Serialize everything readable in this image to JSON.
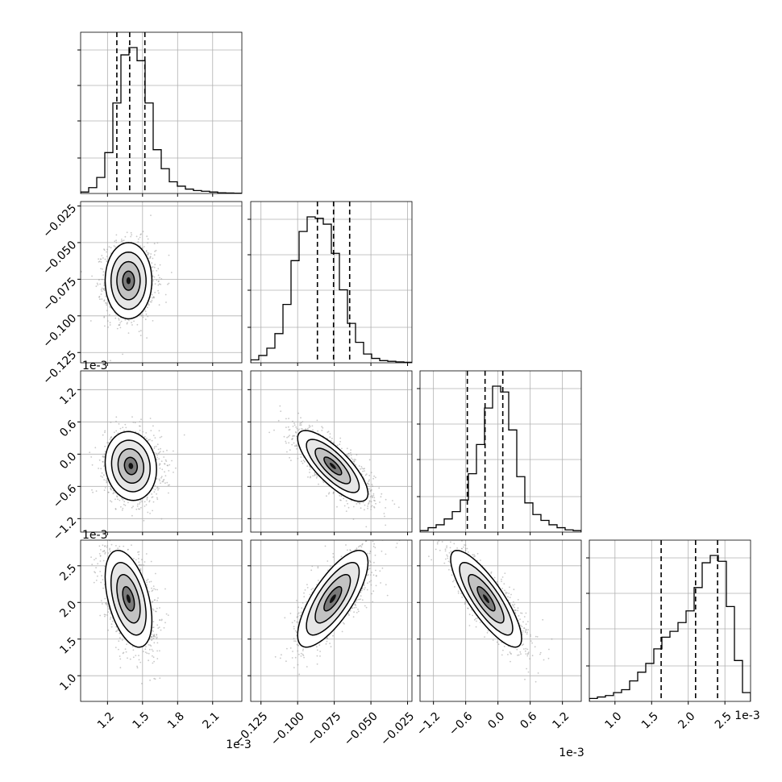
{
  "chart_data": {
    "type": "corner",
    "grid": true,
    "parameters": [
      {
        "axis_ticks": [
          "1.2",
          "1.5",
          "1.8",
          "2.1"
        ],
        "tick_values": [
          1.2,
          1.5,
          1.8,
          2.1
        ],
        "range": [
          0.97,
          2.35
        ],
        "offset_text": "1e-3",
        "offset_text_left": ""
      },
      {
        "axis_ticks": [
          "−0.125",
          "−0.100",
          "−0.075",
          "−0.050",
          "−0.025"
        ],
        "tick_values": [
          -0.125,
          -0.1,
          -0.075,
          -0.05,
          -0.025
        ],
        "range": [
          -0.132,
          -0.022
        ],
        "offset_text": "",
        "offset_text_left": ""
      },
      {
        "axis_ticks": [
          "−1.2",
          "−0.6",
          "0.0",
          "0.6",
          "1.2"
        ],
        "tick_values": [
          -1.2,
          -0.6,
          0.0,
          0.6,
          1.2
        ],
        "range": [
          -1.45,
          1.55
        ],
        "offset_text": "1e-3",
        "offset_text_left": "1e-3"
      },
      {
        "axis_ticks": [
          "1.0",
          "1.5",
          "2.0",
          "2.5"
        ],
        "tick_values": [
          1.0,
          1.5,
          2.0,
          2.5
        ],
        "range": [
          0.65,
          2.85
        ],
        "offset_text": "1e-3",
        "offset_text_left": "1e-3"
      }
    ],
    "histograms": [
      {
        "counts": [
          1,
          4,
          11,
          28,
          62,
          95,
          100,
          91,
          62,
          30,
          17,
          8,
          5,
          3,
          2,
          1.5,
          1,
          0.5,
          0.3,
          0.2
        ],
        "quantiles": [
          1.28,
          1.39,
          1.52
        ]
      },
      {
        "counts": [
          2,
          5,
          10,
          20,
          40,
          70,
          90,
          100,
          99,
          95,
          75,
          50,
          27,
          14,
          6,
          3,
          1.5,
          1,
          0.6,
          0.3
        ],
        "quantiles": [
          -0.0865,
          -0.0755,
          -0.0645
        ]
      },
      {
        "counts": [
          1,
          3,
          5,
          9,
          14,
          22,
          40,
          60,
          85,
          100,
          96,
          70,
          38,
          20,
          12,
          8,
          5,
          3,
          1.5,
          1
        ],
        "quantiles": [
          -0.57,
          -0.24,
          0.09
        ]
      },
      {
        "counts": [
          2,
          3,
          4,
          6,
          8,
          14,
          20,
          26,
          36,
          44,
          48,
          54,
          62,
          78,
          95,
          100,
          96,
          65,
          28,
          6
        ],
        "quantiles": [
          1.63,
          2.1,
          2.4
        ]
      }
    ],
    "scatter2d": [
      {
        "x_param": 0,
        "y_param": 1,
        "mean": [
          1.38,
          -0.076
        ],
        "std": [
          0.1,
          0.013
        ],
        "rho": 0.0
      },
      {
        "x_param": 0,
        "y_param": 2,
        "mean": [
          1.4,
          -0.22
        ],
        "std": [
          0.11,
          0.32
        ],
        "rho": -0.1
      },
      {
        "x_param": 1,
        "y_param": 2,
        "mean": [
          -0.076,
          -0.22
        ],
        "std": [
          0.012,
          0.33
        ],
        "rho": -0.78
      },
      {
        "x_param": 0,
        "y_param": 3,
        "mean": [
          1.38,
          2.05
        ],
        "std": [
          0.1,
          0.33
        ],
        "rho": -0.45
      },
      {
        "x_param": 1,
        "y_param": 3,
        "mean": [
          -0.076,
          2.05
        ],
        "std": [
          0.012,
          0.33
        ],
        "rho": 0.75
      },
      {
        "x_param": 2,
        "y_param": 3,
        "mean": [
          -0.22,
          2.05
        ],
        "std": [
          0.33,
          0.33
        ],
        "rho": -0.82
      }
    ],
    "contour_levels_sigma": [
      0.5,
      1.0,
      1.5,
      2.0
    ]
  }
}
